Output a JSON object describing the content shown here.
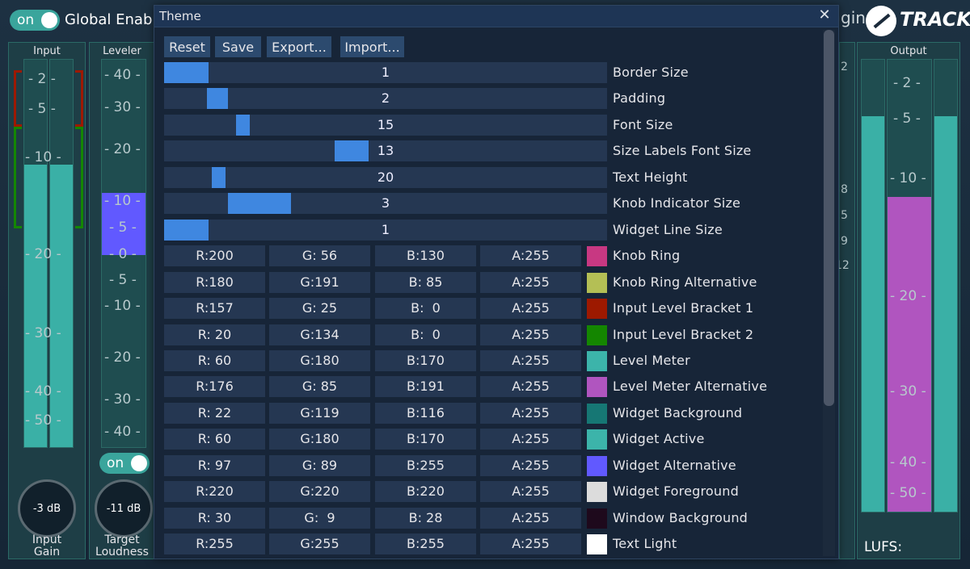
{
  "background": {
    "global": {
      "toggle_label": "on",
      "label": "Global Enabl"
    },
    "brand": {
      "partial_text": "gins",
      "logo_text": "TRACK"
    },
    "input_panel": {
      "title": "Input",
      "scale": [
        "- 2 -",
        "- 5 -",
        "- 10 -",
        "- 20 -",
        "- 30 -",
        "- 40 -",
        "- 50 -"
      ]
    },
    "leveler_panel": {
      "title": "Leveler",
      "scale": [
        "- 40 -",
        "- 30 -",
        "- 20 -",
        "- 10 -",
        "- 5 -",
        "- 0 -",
        "- 5 -",
        "- 10 -",
        "- 20 -",
        "- 30 -",
        "- 40 -"
      ],
      "toggle_label": "on"
    },
    "output_panel": {
      "title": "Output",
      "scale": [
        "- 2 -",
        "- 5 -",
        "- 10 -",
        "- 20 -",
        "- 30 -",
        "- 40 -",
        "- 50 -"
      ],
      "lufs_label": "LUFS:"
    },
    "partial_numbers": [
      "2",
      "8",
      "5",
      "9",
      "12"
    ],
    "input_gain": {
      "value": "-3 dB",
      "label_line1": "Input",
      "label_line2": "Gain"
    },
    "target_loudness": {
      "value": "-11 dB",
      "label_line1": "Target",
      "label_line2": "Loudness"
    },
    "colors": {
      "teal": "#3aa59c",
      "purple": "#b055bf",
      "violet": "#6161ff"
    }
  },
  "dialog": {
    "title": "Theme",
    "toolbar": {
      "reset": "Reset",
      "save": "Save",
      "export": "Export...",
      "import": "Import..."
    },
    "sliders": [
      {
        "value": "1",
        "label": "Border Size",
        "fill_start": 0.0,
        "fill_end": 0.1
      },
      {
        "value": "2",
        "label": "Padding",
        "fill_start": 0.097,
        "fill_end": 0.145
      },
      {
        "value": "15",
        "label": "Font Size",
        "fill_start": 0.162,
        "fill_end": 0.193
      },
      {
        "value": "13",
        "label": "Size Labels Font Size",
        "fill_start": 0.385,
        "fill_end": 0.462
      },
      {
        "value": "20",
        "label": "Text Height",
        "fill_start": 0.108,
        "fill_end": 0.139
      },
      {
        "value": "3",
        "label": "Knob Indicator Size",
        "fill_start": 0.145,
        "fill_end": 0.286
      },
      {
        "value": "1",
        "label": "Widget Line Size",
        "fill_start": 0.0,
        "fill_end": 0.1
      }
    ],
    "colors": [
      {
        "r": "R:200",
        "g": "G: 56",
        "b": "B:130",
        "a": "A:255",
        "label": "Knob Ring",
        "hex": "#c83882"
      },
      {
        "r": "R:180",
        "g": "G:191",
        "b": "B: 85",
        "a": "A:255",
        "label": "Knob Ring Alternative",
        "hex": "#b4bf55"
      },
      {
        "r": "R:157",
        "g": "G: 25",
        "b": "B:  0",
        "a": "A:255",
        "label": "Input Level Bracket 1",
        "hex": "#9d1900"
      },
      {
        "r": "R: 20",
        "g": "G:134",
        "b": "B:  0",
        "a": "A:255",
        "label": "Input Level Bracket 2",
        "hex": "#148600"
      },
      {
        "r": "R: 60",
        "g": "G:180",
        "b": "B:170",
        "a": "A:255",
        "label": "Level Meter",
        "hex": "#3cb4aa"
      },
      {
        "r": "R:176",
        "g": "G: 85",
        "b": "B:191",
        "a": "A:255",
        "label": "Level Meter Alternative",
        "hex": "#b055bf"
      },
      {
        "r": "R: 22",
        "g": "G:119",
        "b": "B:116",
        "a": "A:255",
        "label": "Widget Background",
        "hex": "#167774"
      },
      {
        "r": "R: 60",
        "g": "G:180",
        "b": "B:170",
        "a": "A:255",
        "label": "Widget Active",
        "hex": "#3cb4aa"
      },
      {
        "r": "R: 97",
        "g": "G: 89",
        "b": "B:255",
        "a": "A:255",
        "label": "Widget Alternative",
        "hex": "#6159ff"
      },
      {
        "r": "R:220",
        "g": "G:220",
        "b": "B:220",
        "a": "A:255",
        "label": "Widget Foreground",
        "hex": "#dcdcdc"
      },
      {
        "r": "R: 30",
        "g": "G:  9",
        "b": "B: 28",
        "a": "A:255",
        "label": "Window Background",
        "hex": "#1e091c"
      },
      {
        "r": "R:255",
        "g": "G:255",
        "b": "B:255",
        "a": "A:255",
        "label": "Text Light",
        "hex": "#ffffff"
      }
    ]
  }
}
